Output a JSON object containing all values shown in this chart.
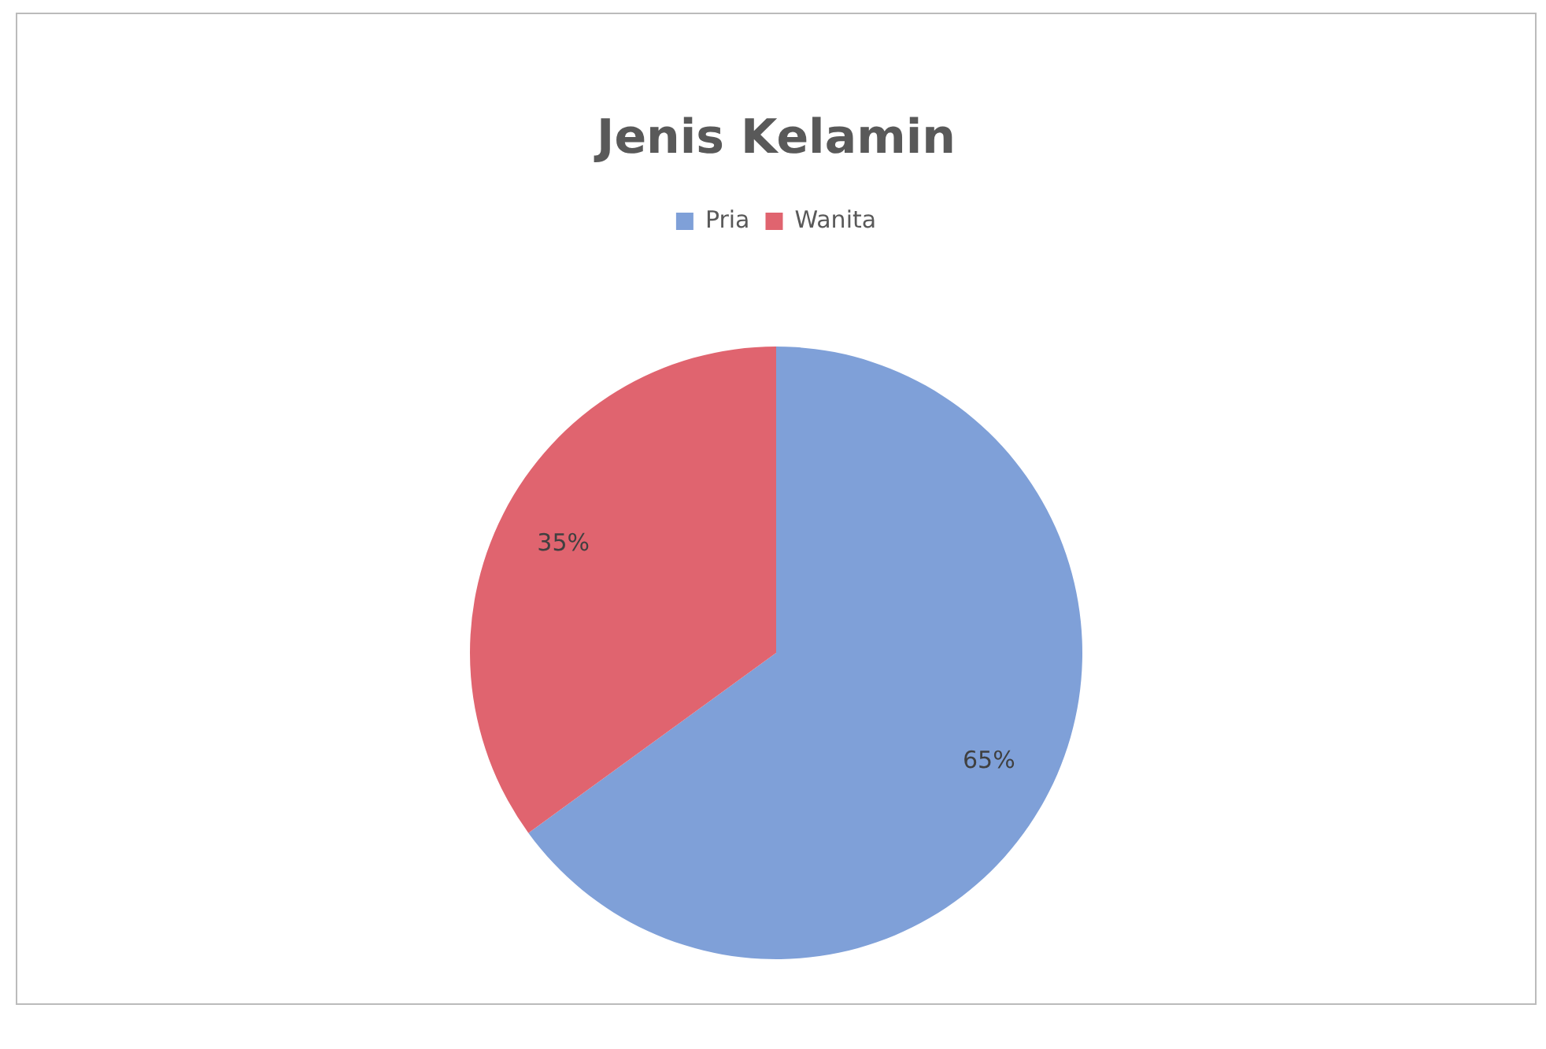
{
  "chart_data": {
    "type": "pie",
    "title": "Jenis Kelamin",
    "categories": [
      "Pria",
      "Wanita"
    ],
    "values": [
      65,
      35
    ],
    "colors": [
      "#7fa0d8",
      "#e0646f"
    ],
    "value_labels": [
      "65%",
      "35%"
    ],
    "legend": "top"
  }
}
